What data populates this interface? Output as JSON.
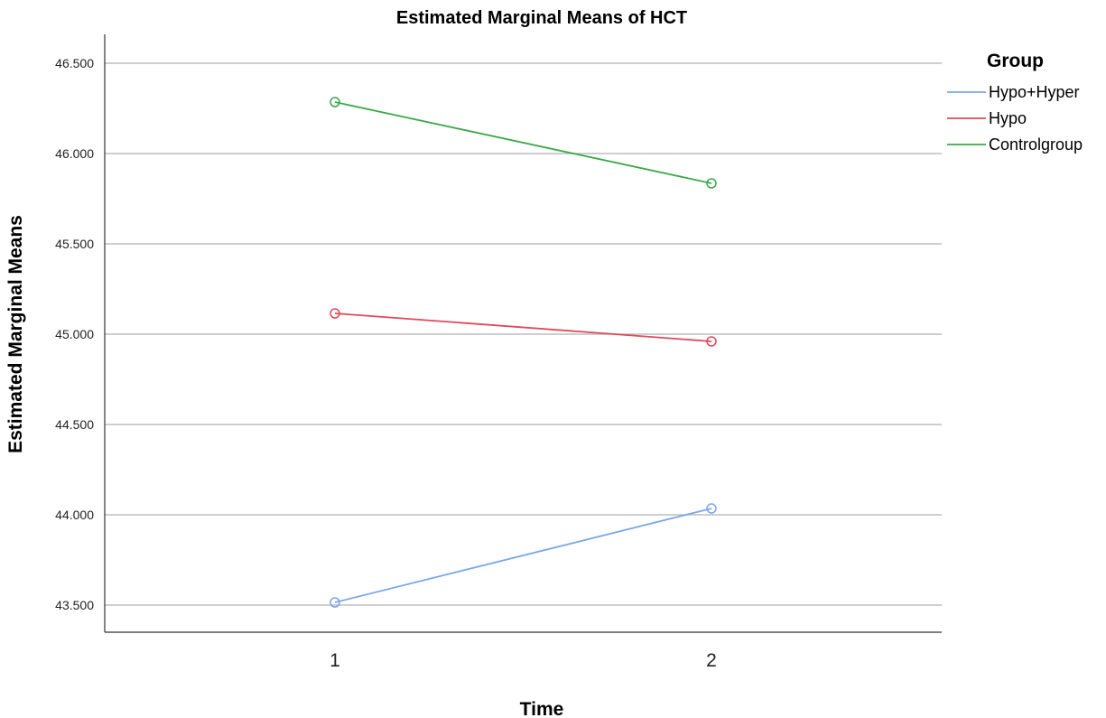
{
  "chart_data": {
    "type": "line",
    "title": "Estimated Marginal Means of HCT",
    "xlabel": "Time",
    "ylabel": "Estimated Marginal Means",
    "categories": [
      "1",
      "2"
    ],
    "yticks": [
      "43.500",
      "44.000",
      "44.500",
      "45.000",
      "45.500",
      "46.000",
      "46.500"
    ],
    "ytick_values": [
      43.5,
      44.0,
      44.5,
      45.0,
      45.5,
      46.0,
      46.5
    ],
    "ylim": [
      43.35,
      46.68
    ],
    "grid": "horizontal",
    "legend_title": "Group",
    "legend_position": "right",
    "series": [
      {
        "name": "Hypo+Hyper",
        "color": "#7ba6e8",
        "values": [
          43.515,
          44.035
        ]
      },
      {
        "name": "Hypo",
        "color": "#e0495a",
        "values": [
          45.115,
          44.96
        ]
      },
      {
        "name": "Controlgroup",
        "color": "#3aa84a",
        "values": [
          46.285,
          45.835
        ]
      }
    ]
  }
}
